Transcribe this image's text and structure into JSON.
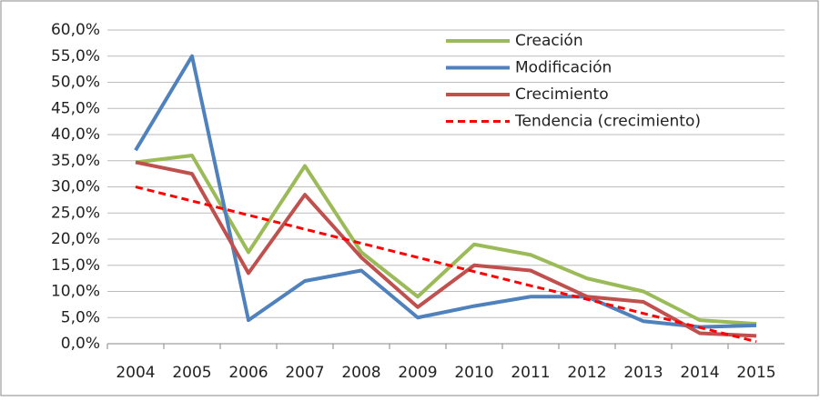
{
  "chart_data": {
    "type": "line",
    "categories": [
      "2004",
      "2005",
      "2006",
      "2007",
      "2008",
      "2009",
      "2010",
      "2011",
      "2012",
      "2013",
      "2014",
      "2015"
    ],
    "series": [
      {
        "name": "Creación",
        "color": "#9bbb59",
        "values": [
          34.7,
          36,
          17.5,
          34,
          17.5,
          9,
          19,
          17,
          12.5,
          10,
          4.5,
          3.8
        ]
      },
      {
        "name": "Modificación",
        "color": "#4f81bd",
        "values": [
          37,
          55,
          4.5,
          12,
          14,
          5,
          7.2,
          9,
          9,
          4.3,
          3.2,
          3.5
        ]
      },
      {
        "name": "Crecimiento",
        "color": "#c0504d",
        "values": [
          34.7,
          32.5,
          13.5,
          28.5,
          16.5,
          7,
          15,
          14,
          9,
          8,
          2,
          1.5
        ]
      },
      {
        "name": "Tendencia (crecimiento)",
        "color": "#ff0000",
        "dashed": true,
        "values": [
          30,
          27.3,
          24.6,
          21.9,
          19.2,
          16.5,
          13.8,
          11.1,
          8.5,
          5.8,
          3.1,
          0.4
        ]
      }
    ],
    "ylim": [
      0,
      60
    ],
    "yticks": [
      {
        "value": 0,
        "label": "0,0%"
      },
      {
        "value": 5,
        "label": "5,0%"
      },
      {
        "value": 10,
        "label": "10,0%"
      },
      {
        "value": 15,
        "label": "15,0%"
      },
      {
        "value": 20,
        "label": "20,0%"
      },
      {
        "value": 25,
        "label": "25,0%"
      },
      {
        "value": 30,
        "label": "30,0%"
      },
      {
        "value": 35,
        "label": "35,0%"
      },
      {
        "value": 40,
        "label": "40,0%"
      },
      {
        "value": 45,
        "label": "45,0%"
      },
      {
        "value": 50,
        "label": "50,0%"
      },
      {
        "value": 55,
        "label": "55,0%"
      },
      {
        "value": 60,
        "label": "60,0%"
      }
    ],
    "grid": true,
    "legend": "top-right"
  }
}
